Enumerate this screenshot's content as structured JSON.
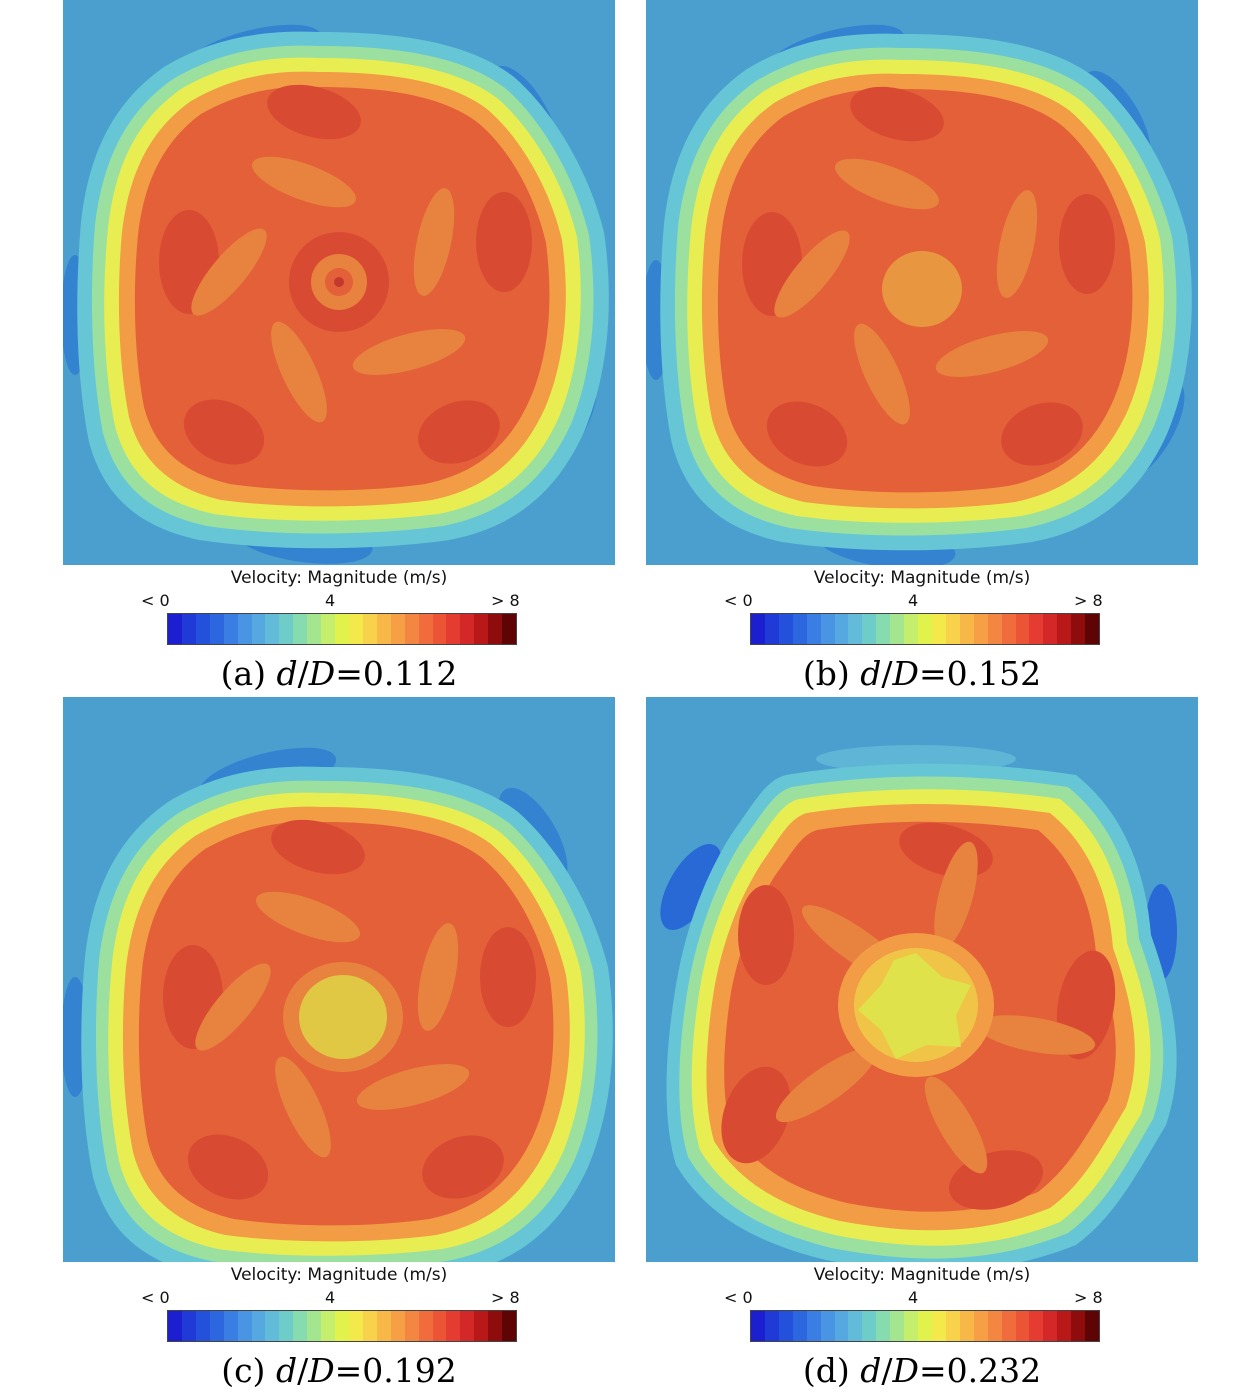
{
  "colors": {
    "background": "#4a9fcf",
    "low_blue": "#3483d1",
    "deep_blue": "#2869d6",
    "ring_cyan": "#66c6d6",
    "ring_green": "#9ce0a0",
    "ring_yellow": "#e8ee52",
    "ring_orange": "#f29c46",
    "core_red": "#e36038",
    "hot_red": "#d94a33",
    "mid_orange": "#e8823f",
    "center_yellow": "#e0c845"
  },
  "colorbar_colors": [
    "#1c1fd0",
    "#1f3ad6",
    "#2451dc",
    "#2c67e0",
    "#3b7ee3",
    "#4a94e4",
    "#56a8e0",
    "#62bcd9",
    "#6ecdc8",
    "#86dcae",
    "#a4e690",
    "#c4ee6c",
    "#e2f24c",
    "#f3e94a",
    "#f7d24a",
    "#f8b848",
    "#f69f44",
    "#f38640",
    "#f06c3c",
    "#ec5436",
    "#e43c30",
    "#d42828",
    "#b81818",
    "#8e0c0c",
    "#5e0404"
  ],
  "panels": [
    {
      "colorbar_title": "Velocity: Magnitude (m/s)",
      "tick_min": "< 0",
      "tick_mid": "4",
      "tick_max": "> 8",
      "caption_prefix": "(a) ",
      "caption_d": "d",
      "caption_slash": "/",
      "caption_D": "D",
      "caption_value": "=0.112",
      "center_style": "ring"
    },
    {
      "colorbar_title": "Velocity: Magnitude (m/s)",
      "tick_min": "< 0",
      "tick_mid": "4",
      "tick_max": "> 8",
      "caption_prefix": "(b) ",
      "caption_d": "d",
      "caption_slash": "/",
      "caption_D": "D",
      "caption_value": "=0.152",
      "center_style": "orange"
    },
    {
      "colorbar_title": "Velocity: Magnitude (m/s)",
      "tick_min": "< 0",
      "tick_mid": "4",
      "tick_max": "> 8",
      "caption_prefix": "(c) ",
      "caption_d": "d",
      "caption_slash": "/",
      "caption_D": "D",
      "caption_value": "=0.192",
      "center_style": "yellow"
    },
    {
      "colorbar_title": "Velocity: Magnitude (m/s)",
      "tick_min": "< 0",
      "tick_mid": "4",
      "tick_max": "> 8",
      "caption_prefix": "(d) ",
      "caption_d": "d",
      "caption_slash": "/",
      "caption_D": "D",
      "caption_value": "=0.232",
      "center_style": "bright"
    }
  ]
}
